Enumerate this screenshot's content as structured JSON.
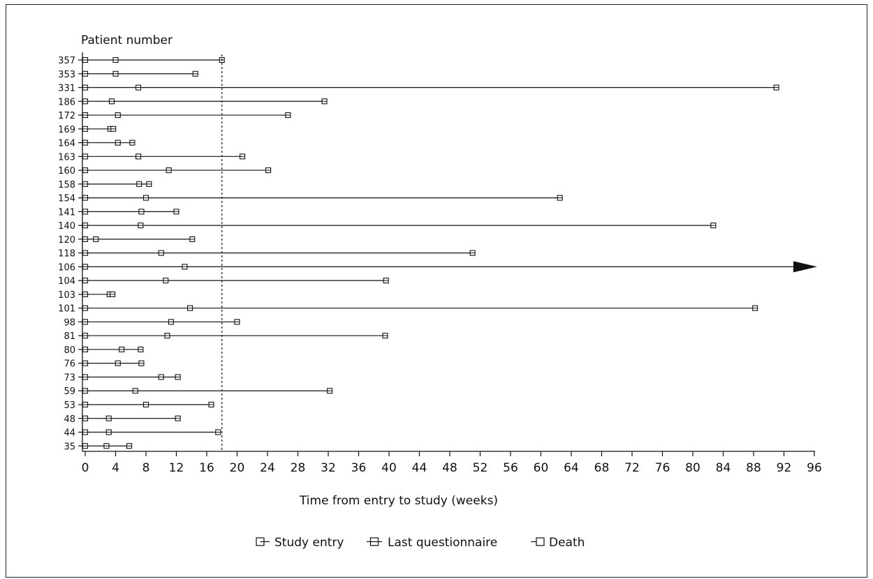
{
  "chart_data": {
    "type": "timeline",
    "ylabel": "Patient number",
    "xlabel": "Time from entry to study (weeks)",
    "xlim": [
      0,
      96
    ],
    "xticks": [
      0,
      4,
      8,
      12,
      16,
      20,
      24,
      28,
      32,
      36,
      40,
      44,
      48,
      52,
      56,
      60,
      64,
      68,
      72,
      76,
      80,
      84,
      88,
      92,
      96
    ],
    "reference_line_x": 18,
    "legend": [
      "Study entry",
      "Last questionnaire",
      "Death"
    ],
    "legend_position": "bottom",
    "patients": [
      {
        "id": "357",
        "entry": 0,
        "last_questionnaire": 4,
        "death": 18
      },
      {
        "id": "353",
        "entry": 0,
        "last_questionnaire": 4,
        "death": 14.5
      },
      {
        "id": "331",
        "entry": 0,
        "last_questionnaire": 7,
        "death": 91
      },
      {
        "id": "186",
        "entry": 0,
        "last_questionnaire": 3.5,
        "death": 31.5
      },
      {
        "id": "172",
        "entry": 0,
        "last_questionnaire": 4.3,
        "death": 26.7
      },
      {
        "id": "169",
        "entry": 0,
        "last_questionnaire": 3.3,
        "death": 3.7
      },
      {
        "id": "164",
        "entry": 0,
        "last_questionnaire": 4.3,
        "death": 6.2
      },
      {
        "id": "163",
        "entry": 0,
        "last_questionnaire": 7,
        "death": 20.7
      },
      {
        "id": "160",
        "entry": 0,
        "last_questionnaire": 11,
        "death": 24.1
      },
      {
        "id": "158",
        "entry": 0,
        "last_questionnaire": 7.1,
        "death": 8.4
      },
      {
        "id": "154",
        "entry": 0,
        "last_questionnaire": 8,
        "death": 62.5
      },
      {
        "id": "141",
        "entry": 0,
        "last_questionnaire": 7.4,
        "death": 12
      },
      {
        "id": "140",
        "entry": 0,
        "last_questionnaire": 7.3,
        "death": 82.7
      },
      {
        "id": "120",
        "entry": 0,
        "last_questionnaire": 1.4,
        "death": 14.1
      },
      {
        "id": "118",
        "entry": 0,
        "last_questionnaire": 10,
        "death": 51
      },
      {
        "id": "106",
        "entry": 0,
        "last_questionnaire": 13.1,
        "death": null,
        "ongoing": true
      },
      {
        "id": "104",
        "entry": 0,
        "last_questionnaire": 10.6,
        "death": 39.6
      },
      {
        "id": "103",
        "entry": 0,
        "last_questionnaire": 3.2,
        "death": 3.6
      },
      {
        "id": "101",
        "entry": 0,
        "last_questionnaire": 13.8,
        "death": 88.2
      },
      {
        "id": "98",
        "entry": 0,
        "last_questionnaire": 11.3,
        "death": 20
      },
      {
        "id": "81",
        "entry": 0,
        "last_questionnaire": 10.8,
        "death": 39.5
      },
      {
        "id": "80",
        "entry": 0,
        "last_questionnaire": 4.8,
        "death": 7.3
      },
      {
        "id": "76",
        "entry": 0,
        "last_questionnaire": 4.3,
        "death": 7.4
      },
      {
        "id": "73",
        "entry": 0,
        "last_questionnaire": 10,
        "death": 12.2
      },
      {
        "id": "59",
        "entry": 0,
        "last_questionnaire": 6.6,
        "death": 32.2
      },
      {
        "id": "53",
        "entry": 0,
        "last_questionnaire": 8,
        "death": 16.6
      },
      {
        "id": "48",
        "entry": 0,
        "last_questionnaire": 3.1,
        "death": 12.2
      },
      {
        "id": "44",
        "entry": 0,
        "last_questionnaire": 3.1,
        "death": 17.5
      },
      {
        "id": "35",
        "entry": 0,
        "last_questionnaire": 2.8,
        "death": 5.8
      }
    ]
  }
}
